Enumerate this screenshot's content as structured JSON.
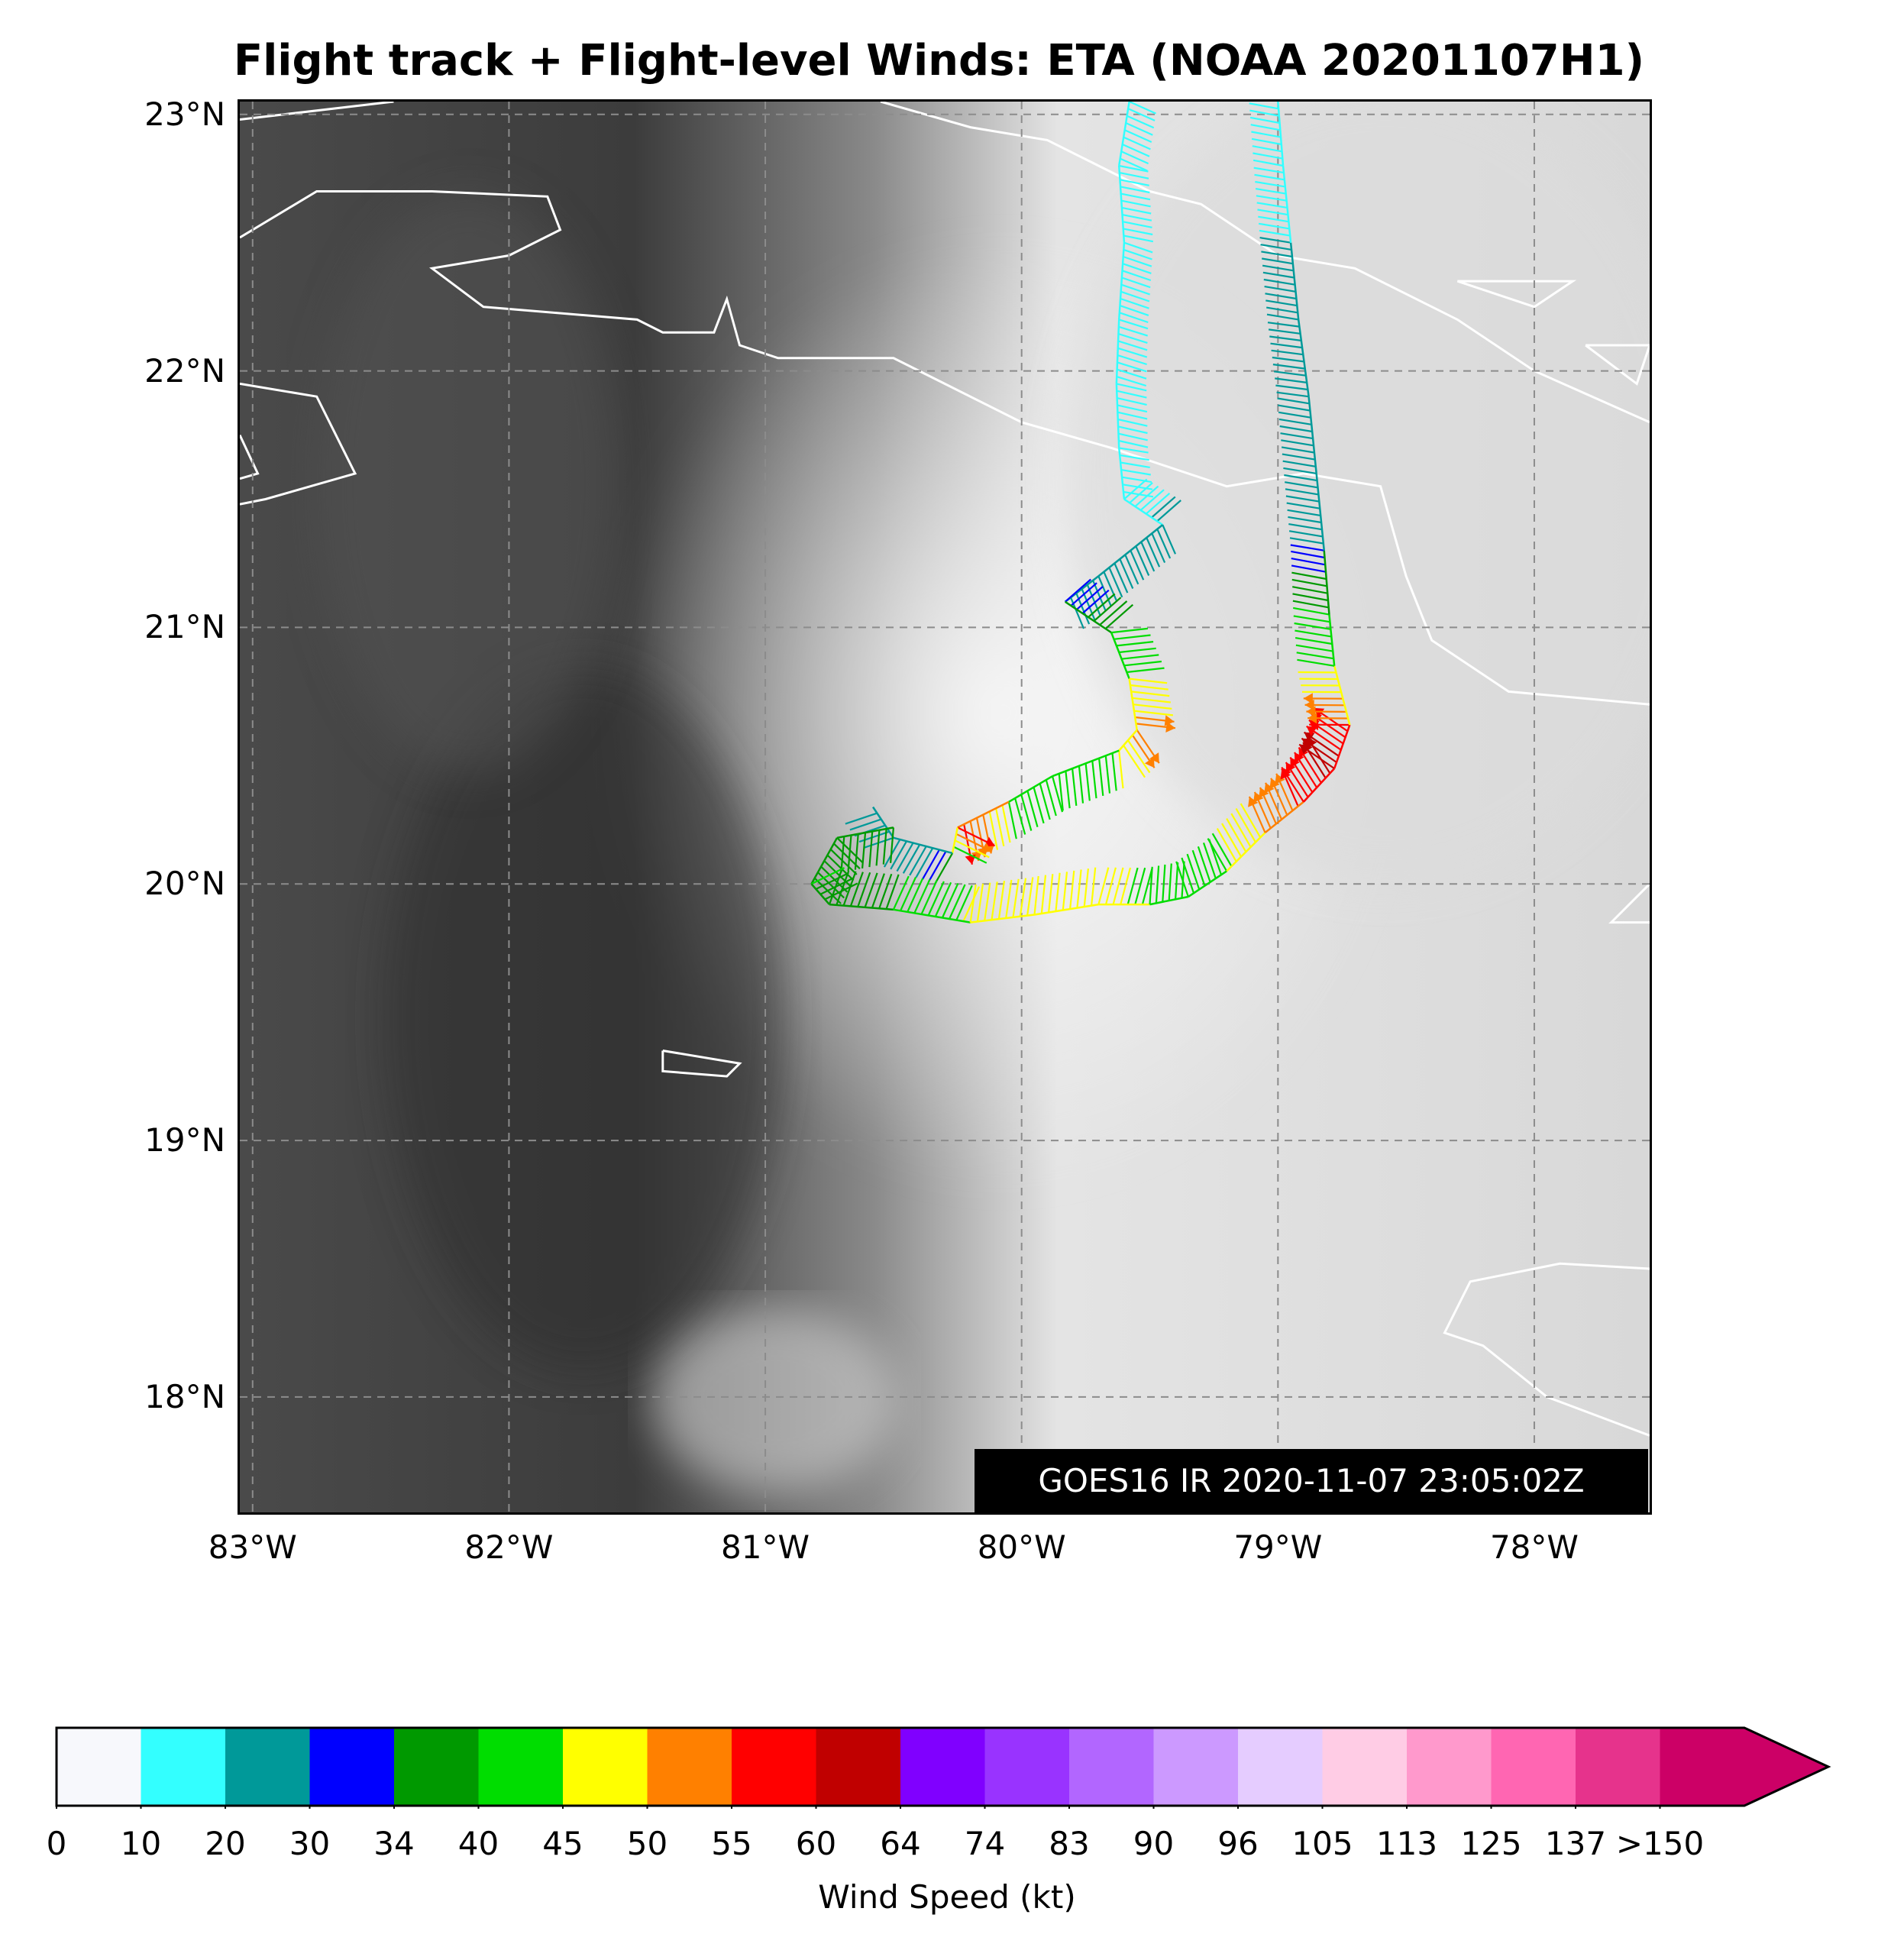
{
  "title": "Flight track + Flight-level Winds: ETA (NOAA 20201107H1)",
  "timestamp_label": "GOES16 IR 2020-11-07 23:05:02Z",
  "map": {
    "lon_range": [
      -83.05,
      -77.55
    ],
    "lat_range": [
      17.55,
      23.05
    ],
    "gridlines": "dashed gray",
    "lat_ticks": [
      {
        "value": 23,
        "label": "23°N"
      },
      {
        "value": 22,
        "label": "22°N"
      },
      {
        "value": 21,
        "label": "21°N"
      },
      {
        "value": 20,
        "label": "20°N"
      },
      {
        "value": 19,
        "label": "19°N"
      },
      {
        "value": 18,
        "label": "18°N"
      }
    ],
    "lon_ticks": [
      {
        "value": -83,
        "label": "83°W"
      },
      {
        "value": -82,
        "label": "82°W"
      },
      {
        "value": -81,
        "label": "81°W"
      },
      {
        "value": -80,
        "label": "80°W"
      },
      {
        "value": -79,
        "label": "79°W"
      },
      {
        "value": -78,
        "label": "78°W"
      }
    ],
    "background": "GOES16 infrared imagery (grayscale cloud tops, bright cold cloud shield centred near 80W 20.7N)",
    "coastline_color": "#ffffff"
  },
  "flight_track": {
    "description": "Flight-level wind barbs colored by wind speed",
    "legs": [
      {
        "name": "inbound-west",
        "points": [
          [
            -79.58,
            23.05
          ],
          [
            -79.62,
            22.8
          ],
          [
            -79.6,
            22.5
          ],
          [
            -79.62,
            22.2
          ],
          [
            -79.63,
            21.95
          ],
          [
            -79.62,
            21.7
          ],
          [
            -79.6,
            21.5
          ],
          [
            -79.45,
            21.4
          ],
          [
            -79.7,
            21.2
          ],
          [
            -79.83,
            21.1
          ],
          [
            -79.65,
            20.98
          ],
          [
            -79.58,
            20.8
          ],
          [
            -79.55,
            20.6
          ],
          [
            -79.62,
            20.52
          ],
          [
            -79.88,
            20.42
          ],
          [
            -80.05,
            20.32
          ],
          [
            -80.25,
            20.22
          ],
          [
            -80.27,
            20.12
          ],
          [
            -80.5,
            20.18
          ],
          [
            -80.58,
            20.3
          ]
        ],
        "speeds": [
          12,
          14,
          15,
          16,
          18,
          14,
          16,
          22,
          24,
          30,
          40,
          45,
          52,
          45,
          42,
          44,
          58,
          34,
          20,
          30
        ]
      },
      {
        "name": "loop-west",
        "points": [
          [
            -80.5,
            20.22
          ],
          [
            -80.72,
            20.18
          ],
          [
            -80.82,
            20.0
          ],
          [
            -80.75,
            19.92
          ],
          [
            -80.5,
            19.9
          ],
          [
            -80.2,
            19.85
          ],
          [
            -79.95,
            19.88
          ],
          [
            -79.7,
            19.92
          ],
          [
            -79.5,
            19.92
          ],
          [
            -79.35,
            19.95
          ]
        ],
        "speeds": [
          36,
          38,
          40,
          38,
          40,
          46,
          48,
          46,
          44,
          40
        ]
      },
      {
        "name": "outbound-east",
        "points": [
          [
            -79.35,
            19.95
          ],
          [
            -79.2,
            20.05
          ],
          [
            -79.05,
            20.2
          ],
          [
            -78.9,
            20.32
          ],
          [
            -78.78,
            20.45
          ],
          [
            -78.72,
            20.62
          ],
          [
            -78.78,
            20.85
          ],
          [
            -78.8,
            21.05
          ],
          [
            -78.82,
            21.3
          ],
          [
            -78.85,
            21.6
          ],
          [
            -78.88,
            21.9
          ],
          [
            -78.92,
            22.2
          ],
          [
            -78.95,
            22.5
          ],
          [
            -78.98,
            22.8
          ],
          [
            -79.0,
            23.05
          ]
        ],
        "speeds": [
          42,
          44,
          50,
          56,
          62,
          55,
          44,
          40,
          30,
          28,
          24,
          22,
          20,
          16,
          14
        ]
      }
    ]
  },
  "colorbar": {
    "label": "Wind Speed (kt)",
    "ticks": [
      "0",
      "10",
      "20",
      "30",
      "34",
      "40",
      "45",
      "50",
      "55",
      "60",
      "64",
      "74",
      "83",
      "90",
      "96",
      "105",
      "113",
      "125",
      "137",
      ">150"
    ],
    "colors": [
      "#f7f8fc",
      "#33ffff",
      "#009999",
      "#0000ff",
      "#009900",
      "#00dd00",
      "#ffff00",
      "#ff8000",
      "#ff0000",
      "#c00000",
      "#8000ff",
      "#9933ff",
      "#b266ff",
      "#cc99ff",
      "#e5ccff",
      "#ffcce5",
      "#ff99cc",
      "#ff66b2",
      "#e6338c",
      "#cc0066"
    ],
    "extend_color": "#cc0066"
  }
}
